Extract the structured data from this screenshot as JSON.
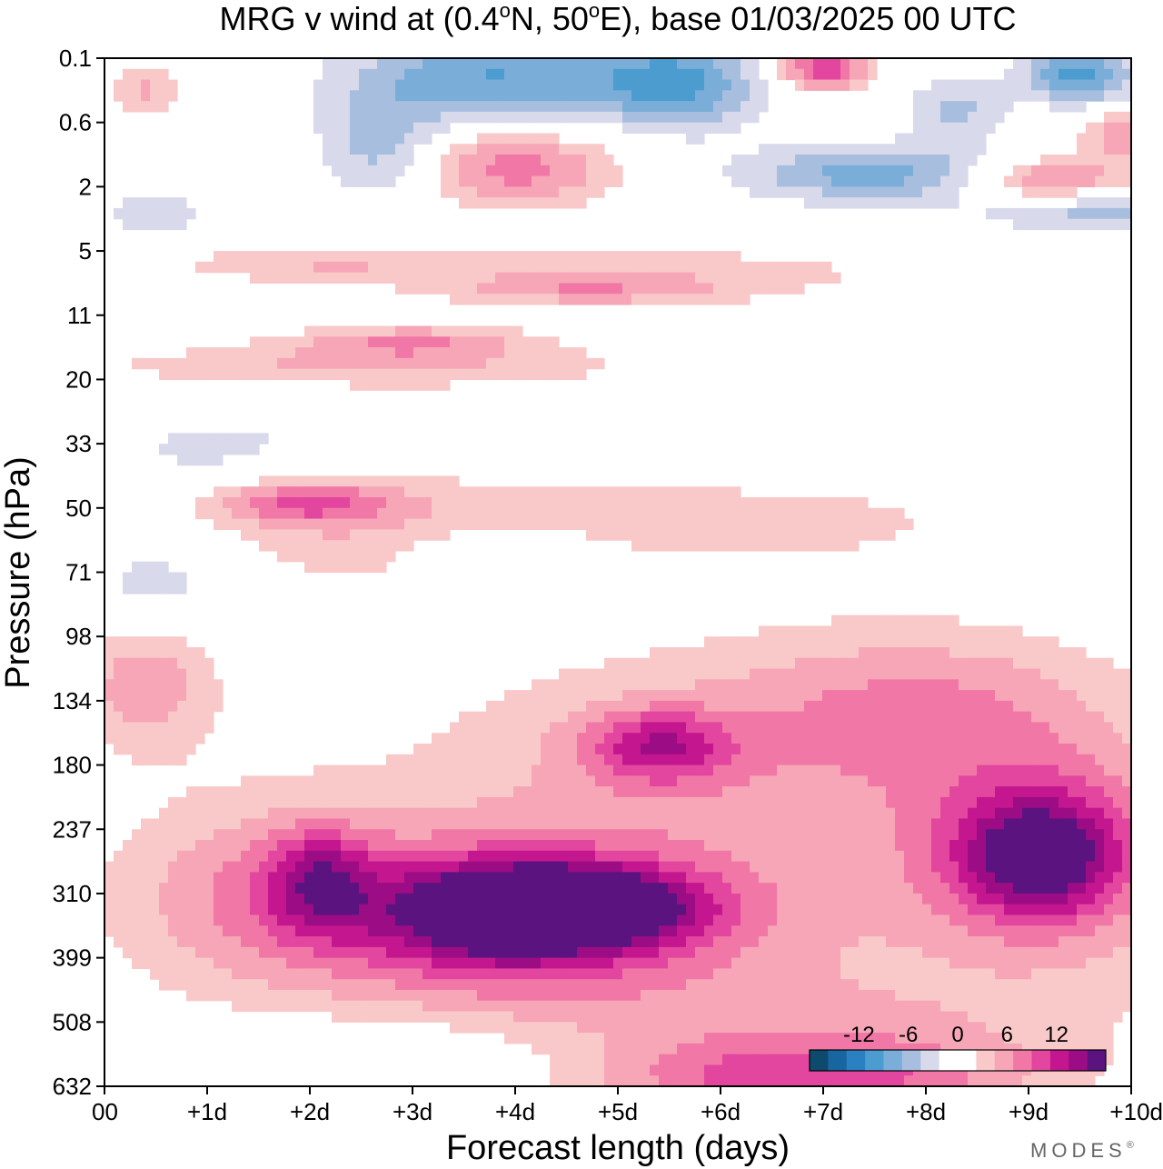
{
  "chart_data": {
    "type": "heatmap",
    "title_parts": {
      "pre": "MRG v wind at (0.4",
      "deg1": "o",
      "mid": "N, 50",
      "deg2": "o",
      "post": "E),  base 01/03/2025  00 UTC"
    },
    "xlabel": "Forecast length (days)",
    "ylabel": "Pressure (hPa)",
    "x_ticks": [
      "00",
      "+1d",
      "+2d",
      "+3d",
      "+4d",
      "+5d",
      "+6d",
      "+7d",
      "+8d",
      "+9d",
      "+10d"
    ],
    "xlim": [
      0,
      10
    ],
    "y_ticks": [
      "0.1",
      "0.6",
      "2",
      "5",
      "11",
      "20",
      "33",
      "50",
      "71",
      "98",
      "134",
      "180",
      "237",
      "310",
      "399",
      "508",
      "632"
    ],
    "y_scale": "pressure levels (log-like, top = 0.1 hPa)",
    "colorbar": {
      "labels": [
        "-12",
        "-6",
        "0",
        "6",
        "12"
      ],
      "label_positions": [
        -12,
        -6,
        0,
        6,
        12
      ],
      "bounds": [
        -18,
        18
      ],
      "colors": [
        "#0d4a6e",
        "#1766a0",
        "#2a80c0",
        "#4c9ccf",
        "#7aaed8",
        "#a8bedf",
        "#d9d9ec",
        "#ffffff",
        "#ffffff",
        "#f9c9c9",
        "#f6a6b6",
        "#f178a6",
        "#e2469e",
        "#c4178f",
        "#9c0c84",
        "#5b1380"
      ],
      "placement": "bottom-right"
    },
    "blobs": [
      {
        "day": 4.5,
        "level": 13.6,
        "rd": 2.7,
        "rl": 1.55,
        "v": 8
      },
      {
        "day": 3.8,
        "level": 13.3,
        "rd": 1.2,
        "rl": 0.9,
        "v": 11
      },
      {
        "day": 4.7,
        "level": 13.2,
        "rd": 1.2,
        "rl": 0.6,
        "v": 13
      },
      {
        "day": 9.2,
        "level": 12.4,
        "rd": 1.5,
        "rl": 1.8,
        "v": 9
      },
      {
        "day": 9.1,
        "level": 12.4,
        "rd": 0.75,
        "rl": 0.9,
        "v": 11
      },
      {
        "day": 1.6,
        "level": 13.0,
        "rd": 1.5,
        "rl": 1.5,
        "v": 6
      },
      {
        "day": 2.1,
        "level": 12.8,
        "rd": 0.5,
        "rl": 0.8,
        "v": 8
      },
      {
        "day": 5.4,
        "level": 10.7,
        "rd": 0.7,
        "rl": 0.55,
        "v": 9
      },
      {
        "day": 5.8,
        "level": 11.0,
        "rd": 2.8,
        "rl": 1.8,
        "v": 5
      },
      {
        "day": 8.0,
        "level": 10.0,
        "rd": 1.8,
        "rl": 1.2,
        "v": 5
      },
      {
        "day": 6.8,
        "level": 15.9,
        "rd": 2.0,
        "rl": 0.6,
        "v": 8
      },
      {
        "day": 7.2,
        "level": 15.3,
        "rd": 2.5,
        "rl": 1.0,
        "v": 4
      },
      {
        "day": 0.4,
        "level": 9.7,
        "rd": 0.7,
        "rl": 1.1,
        "v": 6
      },
      {
        "day": 2.5,
        "level": 7.3,
        "rd": 1.8,
        "rl": 0.9,
        "v": 4
      },
      {
        "day": 1.9,
        "level": 6.9,
        "rd": 0.9,
        "rl": 0.35,
        "v": 8
      },
      {
        "day": 6.2,
        "level": 7.2,
        "rd": 3.0,
        "rl": 0.8,
        "v": 3
      },
      {
        "day": 2.5,
        "level": 4.8,
        "rd": 2.6,
        "rl": 0.35,
        "v": 5
      },
      {
        "day": 4.7,
        "level": 3.6,
        "rd": 1.4,
        "rl": 0.25,
        "v": 5
      },
      {
        "day": 3.0,
        "level": 4.4,
        "rd": 1.2,
        "rl": 0.25,
        "v": 6
      },
      {
        "day": 5.6,
        "level": 3.3,
        "rd": 2.8,
        "rl": 0.5,
        "v": 3
      },
      {
        "day": 4.0,
        "level": 1.7,
        "rd": 1.0,
        "rl": 0.6,
        "v": 8
      },
      {
        "day": 9.2,
        "level": 1.9,
        "rd": 0.8,
        "rl": 0.35,
        "v": 8
      },
      {
        "day": 7.0,
        "level": 0.15,
        "rd": 0.45,
        "rl": 0.35,
        "v": 11
      },
      {
        "day": 2.1,
        "level": 3.2,
        "rd": 1.5,
        "rl": 0.3,
        "v": 4
      },
      {
        "day": 0.4,
        "level": 0.5,
        "rd": 0.4,
        "rl": 0.35,
        "v": 5
      },
      {
        "day": 9.9,
        "level": 1.2,
        "rd": 0.4,
        "rl": 0.4,
        "v": 6
      },
      {
        "day": 5.6,
        "level": 0.4,
        "rd": 0.8,
        "rl": 0.7,
        "v": -9
      },
      {
        "day": 3.8,
        "level": 0.3,
        "rd": 1.4,
        "rl": 0.7,
        "v": -9
      },
      {
        "day": 2.7,
        "level": 1.4,
        "rd": 0.6,
        "rl": 0.8,
        "v": -6
      },
      {
        "day": 7.5,
        "level": 1.8,
        "rd": 1.3,
        "rl": 0.45,
        "v": -8
      },
      {
        "day": 9.5,
        "level": 0.25,
        "rd": 0.55,
        "rl": 0.45,
        "v": -10
      },
      {
        "day": 9.8,
        "level": 2.4,
        "rd": 1.2,
        "rl": 0.35,
        "v": -6
      },
      {
        "day": 8.3,
        "level": 0.8,
        "rd": 0.5,
        "rl": 0.5,
        "v": -5
      },
      {
        "day": 1.2,
        "level": 6.2,
        "rd": 1.5,
        "rl": 0.9,
        "v": -3
      },
      {
        "day": 0.5,
        "level": 8.2,
        "rd": 0.8,
        "rl": 0.8,
        "v": -4
      },
      {
        "day": 3.7,
        "level": 7.6,
        "rd": 1.0,
        "rl": 0.4,
        "v": -3
      },
      {
        "day": 4.3,
        "level": 8.5,
        "rd": 0.7,
        "rl": 0.35,
        "v": -3
      },
      {
        "day": 2.5,
        "level": 15.6,
        "rd": 2.2,
        "rl": 0.6,
        "v": -3
      },
      {
        "day": 0.5,
        "level": 2.4,
        "rd": 0.5,
        "rl": 0.4,
        "v": -4
      },
      {
        "day": 6.7,
        "level": 2.8,
        "rd": 0.4,
        "rl": 0.25,
        "v": -3
      }
    ]
  },
  "brand": "MODES",
  "brand_mark": "®"
}
